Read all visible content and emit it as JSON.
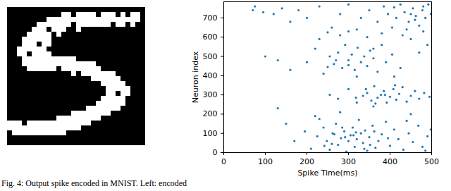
{
  "caption": "Fig. 4: Output spike encoded in MNIST. Left: encoded",
  "chart_data": [
    {
      "type": "image",
      "pixels": [
        [
          0,
          0,
          0,
          0,
          0,
          0,
          0,
          0,
          0,
          0,
          0,
          0,
          0,
          0,
          0,
          0,
          0,
          0,
          0,
          0,
          0,
          0,
          0,
          0,
          0,
          0,
          0,
          0
        ],
        [
          0,
          0,
          0,
          0,
          0,
          0,
          0,
          0,
          0,
          0,
          0,
          1,
          1,
          0,
          1,
          1,
          1,
          1,
          0,
          1,
          1,
          1,
          0,
          1,
          0,
          1,
          1,
          0
        ],
        [
          0,
          0,
          0,
          0,
          0,
          0,
          0,
          0,
          1,
          1,
          1,
          1,
          1,
          1,
          1,
          1,
          1,
          1,
          1,
          1,
          1,
          1,
          1,
          1,
          1,
          1,
          1,
          0
        ],
        [
          0,
          0,
          0,
          0,
          0,
          0,
          1,
          1,
          1,
          1,
          1,
          1,
          1,
          0,
          1,
          1,
          1,
          1,
          1,
          1,
          1,
          0,
          1,
          1,
          0,
          1,
          0,
          0
        ],
        [
          0,
          0,
          0,
          0,
          0,
          1,
          1,
          1,
          0,
          1,
          1,
          1,
          0,
          0,
          1,
          0,
          0,
          0,
          0,
          0,
          0,
          0,
          0,
          0,
          0,
          0,
          0,
          0
        ],
        [
          0,
          0,
          0,
          0,
          1,
          1,
          1,
          1,
          1,
          0,
          1,
          0,
          0,
          0,
          0,
          0,
          0,
          0,
          0,
          0,
          0,
          0,
          0,
          0,
          0,
          0,
          0,
          0
        ],
        [
          0,
          0,
          0,
          1,
          1,
          1,
          1,
          1,
          1,
          0,
          0,
          0,
          0,
          0,
          0,
          0,
          0,
          0,
          0,
          0,
          0,
          0,
          0,
          0,
          0,
          0,
          0,
          0
        ],
        [
          0,
          0,
          0,
          1,
          1,
          1,
          0,
          1,
          1,
          0,
          0,
          0,
          0,
          0,
          0,
          0,
          0,
          0,
          0,
          0,
          0,
          0,
          0,
          0,
          0,
          0,
          0,
          0
        ],
        [
          0,
          0,
          1,
          1,
          1,
          1,
          1,
          1,
          0,
          0,
          0,
          0,
          0,
          0,
          0,
          0,
          0,
          0,
          0,
          0,
          0,
          0,
          0,
          0,
          0,
          0,
          0,
          0
        ],
        [
          0,
          0,
          1,
          1,
          0,
          1,
          1,
          1,
          1,
          0,
          0,
          0,
          0,
          0,
          0,
          0,
          0,
          0,
          0,
          0,
          0,
          0,
          0,
          0,
          0,
          0,
          0,
          0
        ],
        [
          0,
          0,
          0,
          1,
          1,
          1,
          1,
          1,
          1,
          1,
          1,
          1,
          1,
          1,
          0,
          0,
          0,
          0,
          0,
          0,
          0,
          0,
          0,
          0,
          0,
          0,
          0,
          0
        ],
        [
          0,
          0,
          0,
          1,
          1,
          1,
          1,
          1,
          1,
          1,
          1,
          1,
          1,
          1,
          1,
          1,
          1,
          1,
          0,
          0,
          0,
          0,
          0,
          0,
          0,
          0,
          0,
          0
        ],
        [
          0,
          0,
          0,
          0,
          1,
          1,
          1,
          1,
          1,
          1,
          0,
          1,
          1,
          1,
          1,
          1,
          1,
          1,
          1,
          0,
          0,
          0,
          0,
          0,
          0,
          0,
          0,
          0
        ],
        [
          0,
          0,
          0,
          0,
          0,
          0,
          0,
          0,
          0,
          0,
          0,
          0,
          0,
          1,
          0,
          1,
          1,
          1,
          1,
          1,
          1,
          1,
          0,
          0,
          0,
          0,
          0,
          0
        ],
        [
          0,
          0,
          0,
          0,
          0,
          0,
          0,
          0,
          0,
          0,
          0,
          0,
          0,
          0,
          0,
          0,
          0,
          1,
          1,
          1,
          1,
          1,
          1,
          0,
          0,
          0,
          0,
          0
        ],
        [
          0,
          0,
          0,
          0,
          0,
          0,
          0,
          0,
          0,
          0,
          0,
          0,
          0,
          0,
          0,
          0,
          0,
          0,
          0,
          1,
          1,
          1,
          1,
          1,
          0,
          0,
          0,
          0
        ],
        [
          0,
          0,
          0,
          0,
          0,
          0,
          0,
          0,
          0,
          0,
          0,
          0,
          0,
          0,
          0,
          0,
          0,
          0,
          0,
          0,
          1,
          1,
          1,
          1,
          1,
          0,
          0,
          0
        ],
        [
          0,
          0,
          0,
          0,
          0,
          0,
          0,
          0,
          0,
          0,
          0,
          0,
          0,
          0,
          0,
          0,
          0,
          0,
          0,
          0,
          1,
          1,
          0,
          1,
          1,
          0,
          0,
          0
        ],
        [
          0,
          0,
          0,
          0,
          0,
          0,
          0,
          0,
          0,
          0,
          0,
          0,
          0,
          0,
          0,
          0,
          0,
          0,
          0,
          1,
          1,
          1,
          1,
          1,
          0,
          0,
          0,
          0
        ],
        [
          0,
          0,
          0,
          0,
          0,
          0,
          0,
          0,
          0,
          0,
          0,
          0,
          0,
          0,
          0,
          0,
          0,
          0,
          1,
          1,
          1,
          1,
          1,
          1,
          0,
          0,
          0,
          0
        ],
        [
          0,
          0,
          0,
          0,
          0,
          0,
          0,
          0,
          0,
          0,
          0,
          0,
          0,
          0,
          0,
          0,
          1,
          1,
          1,
          1,
          1,
          1,
          1,
          0,
          0,
          0,
          0,
          0
        ],
        [
          0,
          0,
          0,
          0,
          0,
          0,
          0,
          0,
          0,
          0,
          0,
          0,
          0,
          1,
          1,
          1,
          1,
          1,
          1,
          1,
          1,
          0,
          0,
          0,
          0,
          0,
          0,
          0
        ],
        [
          0,
          0,
          0,
          0,
          0,
          0,
          0,
          0,
          0,
          0,
          1,
          1,
          1,
          1,
          1,
          1,
          1,
          1,
          1,
          0,
          0,
          0,
          0,
          0,
          0,
          0,
          0,
          0
        ],
        [
          1,
          1,
          1,
          0,
          1,
          1,
          1,
          1,
          1,
          1,
          1,
          1,
          1,
          1,
          1,
          1,
          1,
          0,
          0,
          0,
          0,
          0,
          0,
          0,
          0,
          0,
          0,
          0
        ],
        [
          1,
          1,
          1,
          1,
          1,
          1,
          1,
          1,
          1,
          1,
          1,
          1,
          1,
          1,
          1,
          0,
          0,
          0,
          0,
          0,
          0,
          0,
          0,
          0,
          0,
          0,
          0,
          0
        ],
        [
          0,
          1,
          1,
          1,
          1,
          1,
          1,
          1,
          1,
          1,
          1,
          1,
          0,
          0,
          0,
          0,
          0,
          0,
          0,
          0,
          0,
          0,
          0,
          0,
          0,
          0,
          0,
          0
        ],
        [
          0,
          0,
          0,
          0,
          0,
          0,
          0,
          0,
          0,
          0,
          0,
          0,
          0,
          0,
          0,
          0,
          0,
          0,
          0,
          0,
          0,
          0,
          0,
          0,
          0,
          0,
          0,
          0
        ],
        [
          0,
          0,
          0,
          0,
          0,
          0,
          0,
          0,
          0,
          0,
          0,
          0,
          0,
          0,
          0,
          0,
          0,
          0,
          0,
          0,
          0,
          0,
          0,
          0,
          0,
          0,
          0,
          0
        ]
      ],
      "tick_labels": false
    },
    {
      "type": "scatter",
      "xlabel": "Spike Time(ms)",
      "ylabel": "Neuron index",
      "xlim": [
        0,
        500
      ],
      "xticks": [
        0,
        100,
        200,
        300,
        400,
        500
      ],
      "ylim": [
        0,
        784
      ],
      "yticks": [
        0,
        100,
        200,
        300,
        400,
        500,
        600,
        700
      ],
      "color": "#1f77b4",
      "marker": "circle",
      "x": [
        210,
        225,
        240,
        248,
        255,
        262,
        270,
        275,
        282,
        290,
        295,
        300,
        305,
        310,
        315,
        320,
        325,
        330,
        335,
        340,
        345,
        350,
        358,
        365,
        372,
        380,
        390,
        400,
        410,
        420,
        432,
        445,
        455,
        468,
        478,
        490,
        498,
        150,
        170,
        195,
        230,
        260,
        285,
        312,
        338,
        362,
        395,
        440,
        485,
        266,
        292,
        318,
        242,
        352,
        130,
        280,
        360,
        450,
        220,
        255,
        275,
        300,
        320,
        335,
        345,
        355,
        362,
        370,
        378,
        385,
        392,
        400,
        408,
        415,
        422,
        430,
        440,
        450,
        460,
        470,
        482,
        495,
        318,
        388,
        412,
        342,
        365,
        100,
        130,
        160,
        200,
        220,
        240,
        255,
        265,
        275,
        285,
        292,
        300,
        308,
        315,
        322,
        330,
        338,
        345,
        352,
        360,
        370,
        380,
        390,
        405,
        425,
        450,
        470,
        490,
        345,
        280,
        230,
        320,
        410,
        300,
        360,
        270,
        250,
        70,
        75,
        95,
        120,
        140,
        160,
        180,
        200,
        230,
        260,
        280,
        300,
        330,
        350,
        370,
        385,
        395,
        405,
        415,
        425,
        435,
        445,
        455,
        462,
        470,
        478,
        485,
        492,
        498,
        440,
        410,
        460,
        480,
        320,
        450,
        300,
        380,
        430,
        480,
        250
      ],
      "values": [
        20,
        85,
        130,
        60,
        15,
        100,
        150,
        40,
        75,
        110,
        5,
        60,
        90,
        130,
        30,
        70,
        170,
        100,
        50,
        115,
        10,
        80,
        140,
        25,
        60,
        95,
        160,
        35,
        120,
        70,
        15,
        100,
        55,
        140,
        30,
        85,
        120,
        150,
        60,
        110,
        175,
        45,
        130,
        90,
        20,
        110,
        75,
        165,
        10,
        95,
        80,
        105,
        35,
        40,
        230,
        210,
        240,
        200,
        190,
        300,
        280,
        330,
        260,
        295,
        310,
        270,
        345,
        285,
        300,
        320,
        260,
        290,
        330,
        275,
        305,
        340,
        265,
        295,
        320,
        280,
        310,
        290,
        285,
        300,
        350,
        330,
        255,
        500,
        480,
        430,
        470,
        540,
        410,
        500,
        460,
        520,
        440,
        560,
        480,
        510,
        430,
        545,
        470,
        500,
        450,
        530,
        490,
        420,
        560,
        470,
        510,
        440,
        590,
        520,
        560,
        600,
        610,
        590,
        395,
        395,
        455,
        540,
        480,
        445,
        740,
        760,
        730,
        720,
        750,
        680,
        740,
        700,
        760,
        650,
        720,
        770,
        700,
        740,
        680,
        760,
        720,
        650,
        700,
        770,
        730,
        680,
        750,
        710,
        660,
        740,
        700,
        770,
        720,
        640,
        755,
        690,
        760,
        640,
        720,
        630,
        620,
        610,
        630,
        625
      ]
    }
  ]
}
